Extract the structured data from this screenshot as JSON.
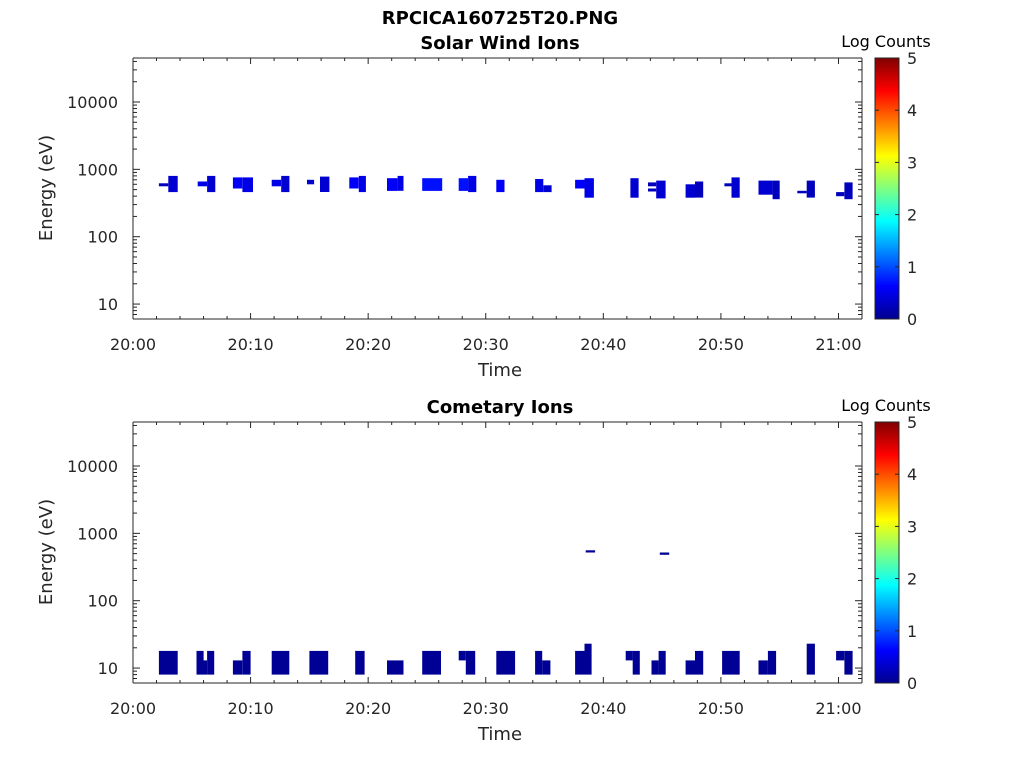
{
  "figure_title": "RPCICA160725T20.PNG",
  "colorbar": {
    "label": "Log Counts",
    "ticks": [
      "0",
      "1",
      "2",
      "3",
      "4",
      "5"
    ],
    "colormap": "jet"
  },
  "chart_data": [
    {
      "type": "heatmap",
      "title": "Solar Wind Ions",
      "xlabel": "Time",
      "ylabel": "Energy (eV)",
      "x_unit": "minutes after 20:00",
      "xlim": [
        0,
        62
      ],
      "ylim": [
        6,
        45000
      ],
      "yscale": "log",
      "xticks": [
        "20:00",
        "20:10",
        "20:20",
        "20:30",
        "20:40",
        "20:50",
        "21:00"
      ],
      "yticks": [
        "10",
        "100",
        "1000",
        "10000"
      ],
      "zlim": [
        0,
        5
      ],
      "cells": [
        {
          "t0": 2.2,
          "t1": 3.0,
          "e0": 560,
          "e1": 620,
          "v": 0.3
        },
        {
          "t0": 3.0,
          "t1": 3.8,
          "e0": 460,
          "e1": 800,
          "v": 0.4
        },
        {
          "t0": 5.5,
          "t1": 6.3,
          "e0": 560,
          "e1": 660,
          "v": 0.5
        },
        {
          "t0": 6.3,
          "t1": 7.0,
          "e0": 460,
          "e1": 800,
          "v": 0.4
        },
        {
          "t0": 8.5,
          "t1": 9.3,
          "e0": 520,
          "e1": 760,
          "v": 0.6
        },
        {
          "t0": 9.3,
          "t1": 10.2,
          "e0": 460,
          "e1": 760,
          "v": 0.5
        },
        {
          "t0": 11.8,
          "t1": 12.6,
          "e0": 560,
          "e1": 700,
          "v": 0.5
        },
        {
          "t0": 12.6,
          "t1": 13.3,
          "e0": 460,
          "e1": 800,
          "v": 0.4
        },
        {
          "t0": 14.8,
          "t1": 15.4,
          "e0": 600,
          "e1": 700,
          "v": 0.4
        },
        {
          "t0": 15.9,
          "t1": 16.7,
          "e0": 460,
          "e1": 780,
          "v": 0.4
        },
        {
          "t0": 18.4,
          "t1": 19.2,
          "e0": 520,
          "e1": 760,
          "v": 0.6
        },
        {
          "t0": 19.2,
          "t1": 19.8,
          "e0": 460,
          "e1": 800,
          "v": 0.5
        },
        {
          "t0": 21.6,
          "t1": 22.5,
          "e0": 480,
          "e1": 740,
          "v": 0.6
        },
        {
          "t0": 22.5,
          "t1": 23.0,
          "e0": 480,
          "e1": 800,
          "v": 0.5
        },
        {
          "t0": 24.6,
          "t1": 26.3,
          "e0": 480,
          "e1": 740,
          "v": 0.7
        },
        {
          "t0": 27.7,
          "t1": 28.5,
          "e0": 480,
          "e1": 740,
          "v": 0.7
        },
        {
          "t0": 28.5,
          "t1": 29.2,
          "e0": 460,
          "e1": 800,
          "v": 0.5
        },
        {
          "t0": 30.9,
          "t1": 31.6,
          "e0": 460,
          "e1": 700,
          "v": 0.6
        },
        {
          "t0": 34.2,
          "t1": 34.9,
          "e0": 460,
          "e1": 720,
          "v": 0.5
        },
        {
          "t0": 34.9,
          "t1": 35.6,
          "e0": 460,
          "e1": 580,
          "v": 0.4
        },
        {
          "t0": 37.6,
          "t1": 38.4,
          "e0": 520,
          "e1": 700,
          "v": 0.6
        },
        {
          "t0": 38.4,
          "t1": 39.2,
          "e0": 380,
          "e1": 740,
          "v": 0.5
        },
        {
          "t0": 42.3,
          "t1": 43.0,
          "e0": 380,
          "e1": 740,
          "v": 0.4
        },
        {
          "t0": 43.8,
          "t1": 44.5,
          "e0": 560,
          "e1": 640,
          "v": 0.3
        },
        {
          "t0": 43.8,
          "t1": 44.5,
          "e0": 470,
          "e1": 520,
          "v": 0.3
        },
        {
          "t0": 44.5,
          "t1": 45.3,
          "e0": 370,
          "e1": 680,
          "v": 0.4
        },
        {
          "t0": 47.0,
          "t1": 47.8,
          "e0": 380,
          "e1": 600,
          "v": 0.4
        },
        {
          "t0": 47.8,
          "t1": 48.5,
          "e0": 380,
          "e1": 660,
          "v": 0.3
        },
        {
          "t0": 50.3,
          "t1": 50.9,
          "e0": 560,
          "e1": 620,
          "v": 0.3
        },
        {
          "t0": 50.9,
          "t1": 51.6,
          "e0": 380,
          "e1": 760,
          "v": 0.4
        },
        {
          "t0": 53.2,
          "t1": 54.4,
          "e0": 420,
          "e1": 680,
          "v": 0.4
        },
        {
          "t0": 54.4,
          "t1": 55.0,
          "e0": 360,
          "e1": 680,
          "v": 0.3
        },
        {
          "t0": 56.5,
          "t1": 57.3,
          "e0": 440,
          "e1": 480,
          "v": 0.3
        },
        {
          "t0": 57.3,
          "t1": 58.0,
          "e0": 380,
          "e1": 680,
          "v": 0.3
        },
        {
          "t0": 59.8,
          "t1": 60.5,
          "e0": 400,
          "e1": 460,
          "v": 0.3
        },
        {
          "t0": 60.5,
          "t1": 61.2,
          "e0": 360,
          "e1": 640,
          "v": 0.3
        }
      ]
    },
    {
      "type": "heatmap",
      "title": "Cometary Ions",
      "xlabel": "Time",
      "ylabel": "Energy (eV)",
      "x_unit": "minutes after 20:00",
      "xlim": [
        0,
        62
      ],
      "ylim": [
        6,
        45000
      ],
      "yscale": "log",
      "xticks": [
        "20:00",
        "20:10",
        "20:20",
        "20:30",
        "20:40",
        "20:50",
        "21:00"
      ],
      "yticks": [
        "10",
        "100",
        "1000",
        "10000"
      ],
      "zlim": [
        0,
        5
      ],
      "cells": [
        {
          "t0": 2.2,
          "t1": 3.8,
          "e0": 8,
          "e1": 18,
          "v": 0.1
        },
        {
          "t0": 5.4,
          "t1": 6.0,
          "e0": 8,
          "e1": 18,
          "v": 0.1
        },
        {
          "t0": 6.0,
          "t1": 6.3,
          "e0": 8,
          "e1": 13,
          "v": 0.1
        },
        {
          "t0": 6.3,
          "t1": 6.9,
          "e0": 8,
          "e1": 18,
          "v": 0.1
        },
        {
          "t0": 8.5,
          "t1": 9.3,
          "e0": 8,
          "e1": 13,
          "v": 0.1
        },
        {
          "t0": 9.3,
          "t1": 10.0,
          "e0": 8,
          "e1": 18,
          "v": 0.1
        },
        {
          "t0": 11.8,
          "t1": 13.3,
          "e0": 8,
          "e1": 18,
          "v": 0.1
        },
        {
          "t0": 15.0,
          "t1": 16.6,
          "e0": 8,
          "e1": 18,
          "v": 0.1
        },
        {
          "t0": 18.9,
          "t1": 19.7,
          "e0": 8,
          "e1": 18,
          "v": 0.1
        },
        {
          "t0": 21.6,
          "t1": 23.0,
          "e0": 8,
          "e1": 13,
          "v": 0.1
        },
        {
          "t0": 24.6,
          "t1": 26.2,
          "e0": 8,
          "e1": 18,
          "v": 0.1
        },
        {
          "t0": 27.7,
          "t1": 28.3,
          "e0": 13,
          "e1": 18,
          "v": 0.1
        },
        {
          "t0": 28.3,
          "t1": 29.1,
          "e0": 8,
          "e1": 18,
          "v": 0.1
        },
        {
          "t0": 30.9,
          "t1": 32.5,
          "e0": 8,
          "e1": 18,
          "v": 0.1
        },
        {
          "t0": 34.2,
          "t1": 34.8,
          "e0": 8,
          "e1": 18,
          "v": 0.1
        },
        {
          "t0": 34.8,
          "t1": 35.5,
          "e0": 8,
          "e1": 13,
          "v": 0.1
        },
        {
          "t0": 37.6,
          "t1": 38.4,
          "e0": 8,
          "e1": 18,
          "v": 0.1
        },
        {
          "t0": 38.4,
          "t1": 39.0,
          "e0": 8,
          "e1": 23,
          "v": 0.1
        },
        {
          "t0": 38.5,
          "t1": 39.3,
          "e0": 520,
          "e1": 560,
          "v": 0.1
        },
        {
          "t0": 41.9,
          "t1": 42.5,
          "e0": 13,
          "e1": 18,
          "v": 0.1
        },
        {
          "t0": 42.5,
          "t1": 43.1,
          "e0": 8,
          "e1": 18,
          "v": 0.1
        },
        {
          "t0": 44.1,
          "t1": 44.7,
          "e0": 8,
          "e1": 13,
          "v": 0.1
        },
        {
          "t0": 44.7,
          "t1": 45.3,
          "e0": 8,
          "e1": 18,
          "v": 0.1
        },
        {
          "t0": 44.8,
          "t1": 45.6,
          "e0": 480,
          "e1": 520,
          "v": 0.1
        },
        {
          "t0": 47.0,
          "t1": 47.8,
          "e0": 8,
          "e1": 13,
          "v": 0.1
        },
        {
          "t0": 47.8,
          "t1": 48.5,
          "e0": 8,
          "e1": 18,
          "v": 0.1
        },
        {
          "t0": 50.1,
          "t1": 51.6,
          "e0": 8,
          "e1": 18,
          "v": 0.1
        },
        {
          "t0": 53.2,
          "t1": 54.0,
          "e0": 8,
          "e1": 13,
          "v": 0.1
        },
        {
          "t0": 54.0,
          "t1": 54.7,
          "e0": 8,
          "e1": 18,
          "v": 0.1
        },
        {
          "t0": 57.3,
          "t1": 58.0,
          "e0": 8,
          "e1": 23,
          "v": 0.1
        },
        {
          "t0": 59.8,
          "t1": 60.5,
          "e0": 13,
          "e1": 18,
          "v": 0.1
        },
        {
          "t0": 60.5,
          "t1": 61.2,
          "e0": 8,
          "e1": 18,
          "v": 0.1
        }
      ]
    }
  ]
}
